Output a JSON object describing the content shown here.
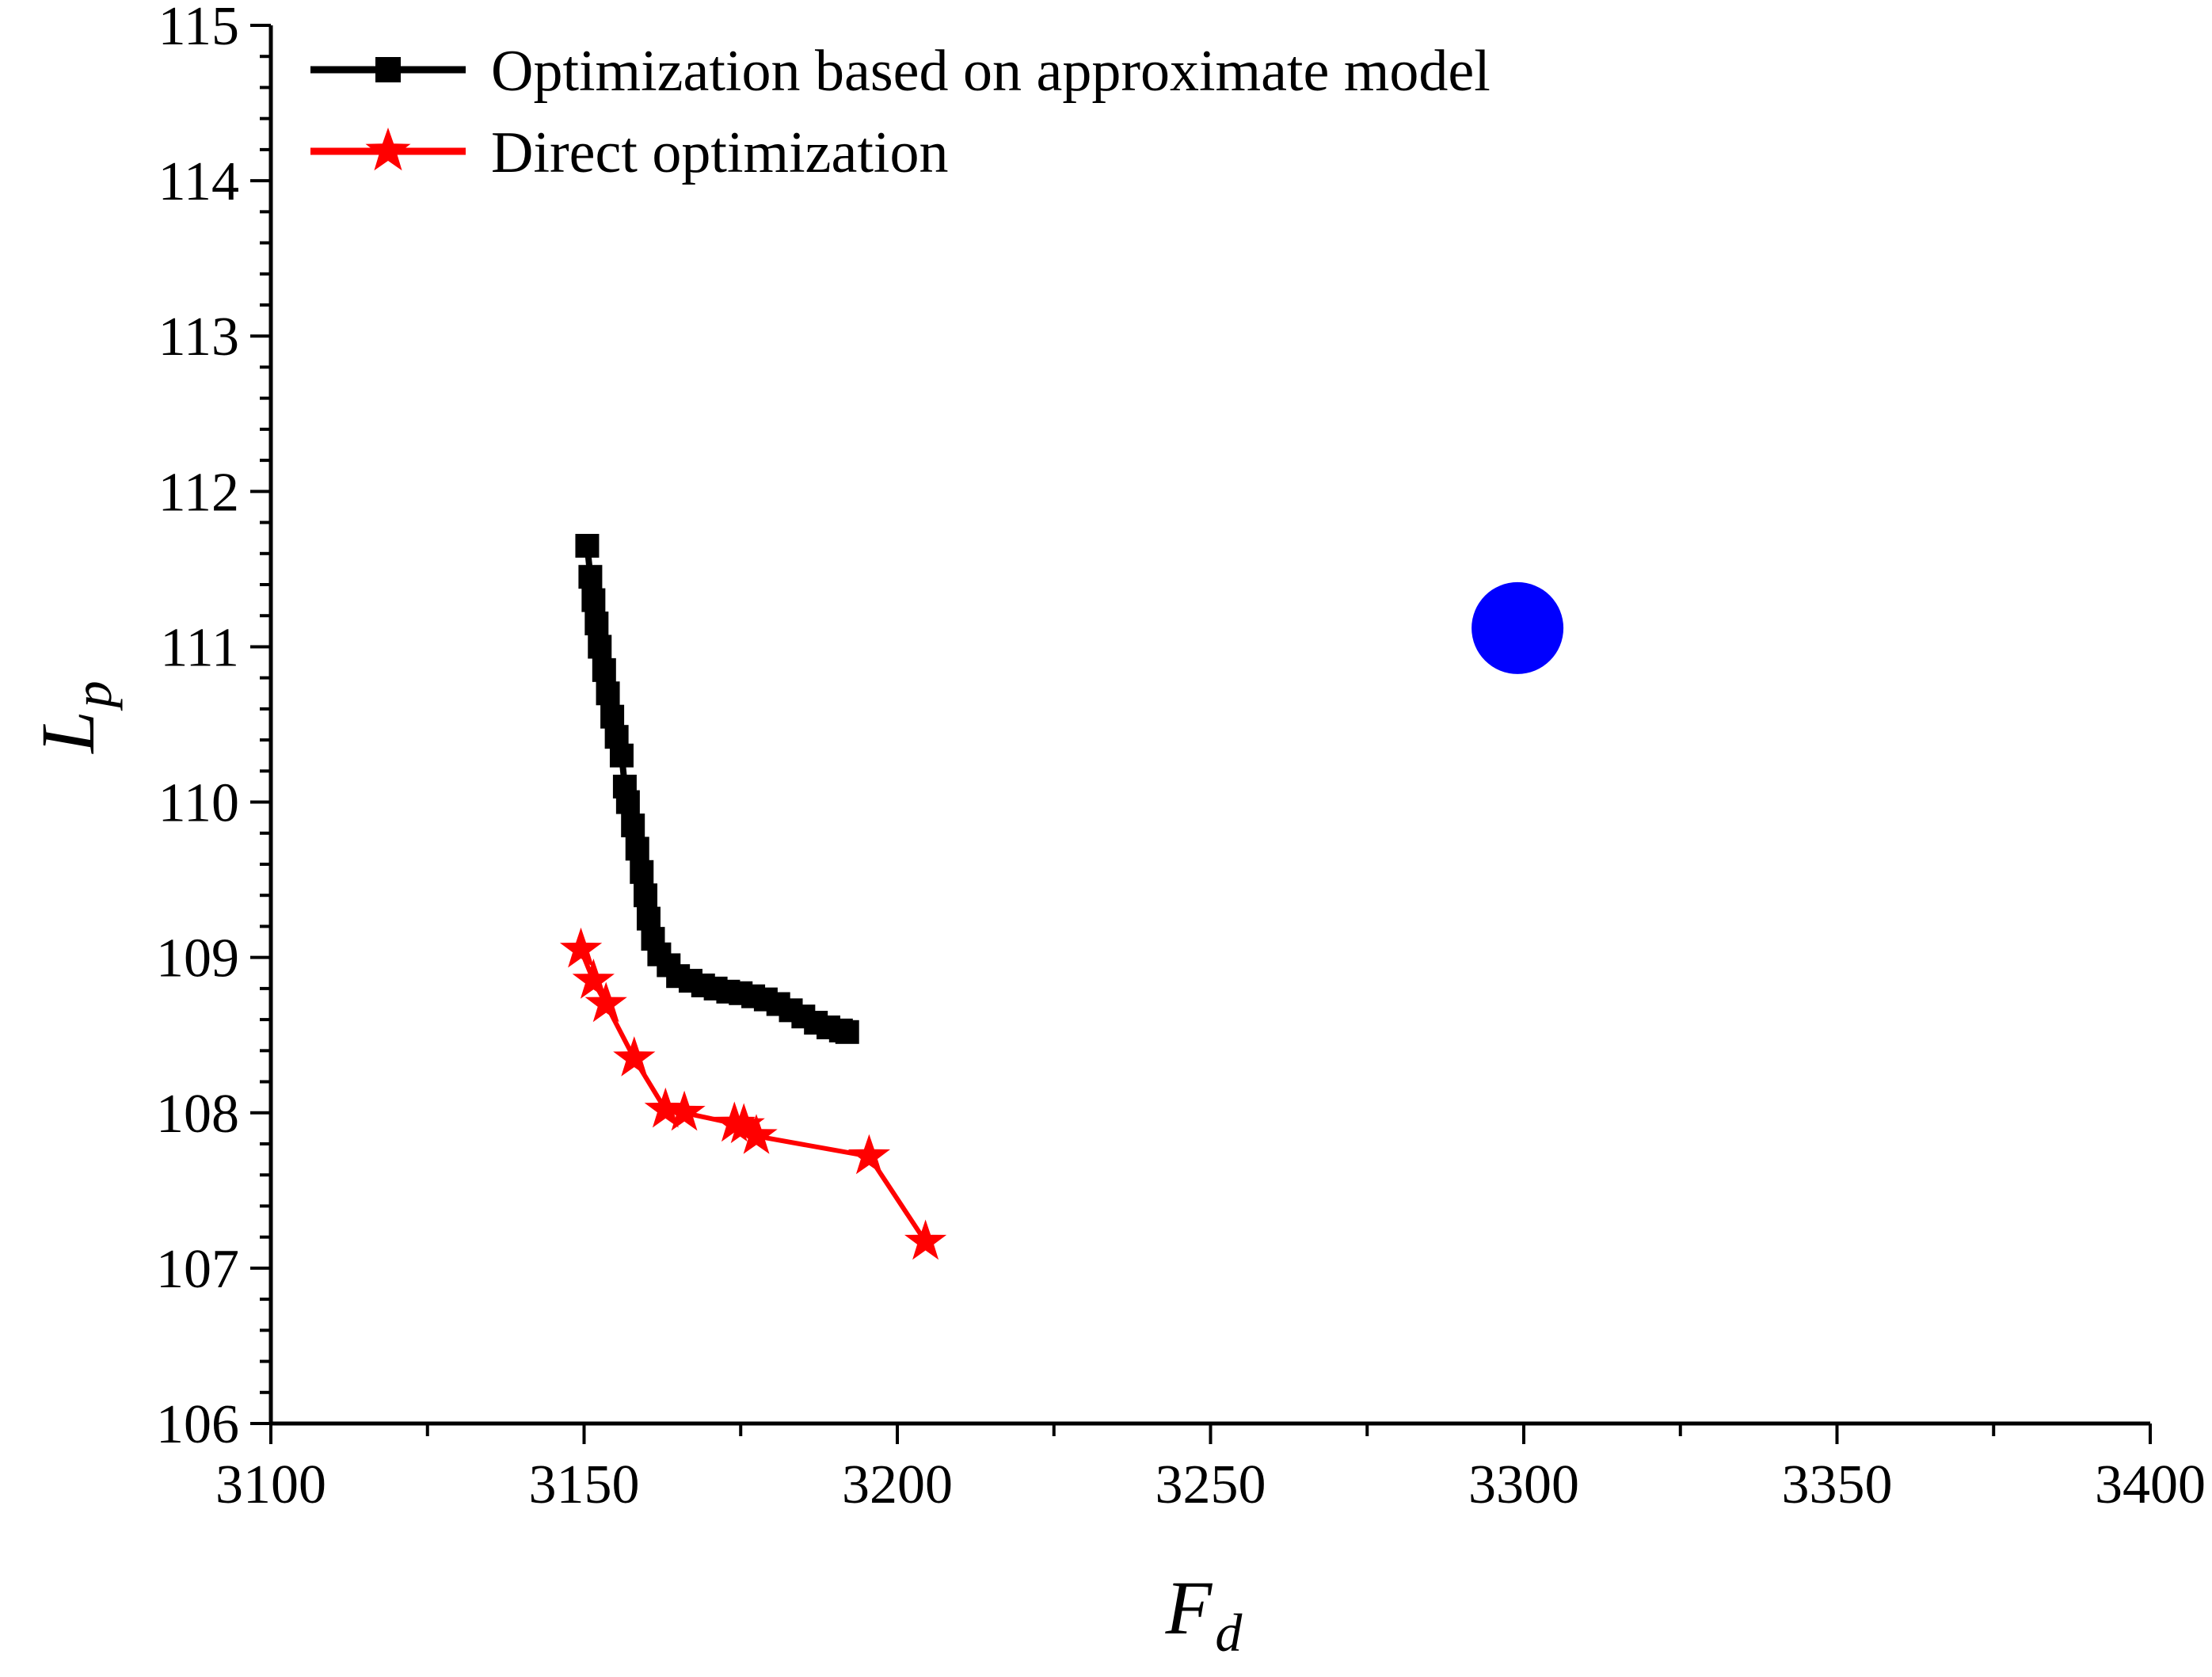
{
  "chart_data": {
    "type": "scatter",
    "title": "",
    "xlabel": {
      "main": "F",
      "sub": "d"
    },
    "ylabel": {
      "main": "L",
      "sub": "p"
    },
    "xlim": [
      3100,
      3400
    ],
    "ylim": [
      106,
      115
    ],
    "xticks": [
      3100,
      3150,
      3200,
      3250,
      3300,
      3350,
      3400
    ],
    "yticks": [
      106,
      107,
      108,
      109,
      110,
      111,
      112,
      113,
      114,
      115
    ],
    "xtick_labels": [
      "3100",
      "3150",
      "3200",
      "3250",
      "3300",
      "3350",
      "3400"
    ],
    "ytick_labels": [
      "106",
      "107",
      "108",
      "109",
      "110",
      "111",
      "112",
      "113",
      "114",
      "115"
    ],
    "legend_position": "top-left",
    "series": [
      {
        "name": "Optimization based on approximate model",
        "color": "#000000",
        "marker": "square",
        "line": true,
        "points": [
          [
            3150.5,
            111.65
          ],
          [
            3151.0,
            111.45
          ],
          [
            3151.5,
            111.3
          ],
          [
            3152.0,
            111.15
          ],
          [
            3152.5,
            111.0
          ],
          [
            3153.2,
            110.85
          ],
          [
            3153.8,
            110.7
          ],
          [
            3154.5,
            110.55
          ],
          [
            3155.2,
            110.42
          ],
          [
            3156.0,
            110.3
          ],
          [
            3156.5,
            110.1
          ],
          [
            3157.0,
            110.0
          ],
          [
            3157.8,
            109.85
          ],
          [
            3158.5,
            109.7
          ],
          [
            3159.2,
            109.55
          ],
          [
            3159.8,
            109.4
          ],
          [
            3160.3,
            109.25
          ],
          [
            3161.0,
            109.12
          ],
          [
            3162.0,
            109.02
          ],
          [
            3163.5,
            108.95
          ],
          [
            3165.0,
            108.88
          ],
          [
            3167.0,
            108.85
          ],
          [
            3169.0,
            108.82
          ],
          [
            3171.0,
            108.8
          ],
          [
            3173.0,
            108.78
          ],
          [
            3175.0,
            108.77
          ],
          [
            3177.0,
            108.75
          ],
          [
            3179.0,
            108.73
          ],
          [
            3181.0,
            108.7
          ],
          [
            3183.0,
            108.66
          ],
          [
            3185.0,
            108.62
          ],
          [
            3187.0,
            108.58
          ],
          [
            3189.0,
            108.55
          ],
          [
            3191.0,
            108.53
          ],
          [
            3192.0,
            108.52
          ]
        ]
      },
      {
        "name": "Direct optimization",
        "color": "#ff0000",
        "marker": "star",
        "line": true,
        "points": [
          [
            3149.5,
            109.05
          ],
          [
            3151.5,
            108.85
          ],
          [
            3153.5,
            108.7
          ],
          [
            3158.0,
            108.35
          ],
          [
            3163.0,
            108.02
          ],
          [
            3166.0,
            108.0
          ],
          [
            3174.0,
            107.93
          ],
          [
            3175.5,
            107.92
          ],
          [
            3177.5,
            107.85
          ],
          [
            3195.5,
            107.72
          ],
          [
            3204.5,
            107.17
          ]
        ]
      },
      {
        "name": "",
        "color": "#0000ff",
        "marker": "circle",
        "line": false,
        "points": [
          [
            3299.0,
            111.12
          ]
        ]
      }
    ]
  }
}
